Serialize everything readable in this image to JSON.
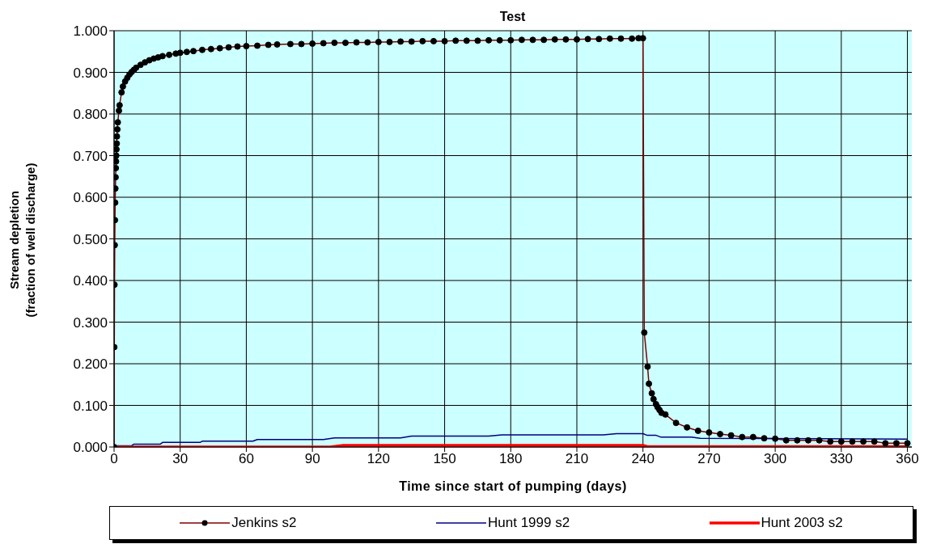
{
  "chart_data": {
    "type": "line",
    "title": "Test",
    "xlabel": "Time since start of pumping (days)",
    "ylabel": "Stream depletion\n(fraction of well discharge)",
    "xlim": [
      0,
      362
    ],
    "xticks": [
      0,
      30,
      60,
      90,
      120,
      150,
      180,
      210,
      240,
      270,
      300,
      330,
      360
    ],
    "ylim": [
      0,
      1
    ],
    "yticks": [
      {
        "value": 0,
        "label": "0.000"
      },
      {
        "value": 0.1,
        "label": "0.100"
      },
      {
        "value": 0.2,
        "label": "0.200"
      },
      {
        "value": 0.3,
        "label": "0.300"
      },
      {
        "value": 0.4,
        "label": "0.400"
      },
      {
        "value": 0.5,
        "label": "0.500"
      },
      {
        "value": 0.6,
        "label": "0.600"
      },
      {
        "value": 0.7,
        "label": "0.700"
      },
      {
        "value": 0.8,
        "label": "0.800"
      },
      {
        "value": 0.9,
        "label": "0.900"
      },
      {
        "value": 1,
        "label": "1.000"
      }
    ],
    "grid": true,
    "legend": "bottom",
    "series": [
      {
        "name": "Jenkins s2",
        "color": "#800000",
        "marker": "circle",
        "x": [
          0,
          0.1,
          0.2,
          0.3,
          0.4,
          0.5,
          0.6,
          0.7,
          0.8,
          0.9,
          1.0,
          1.1,
          1.2,
          1.3,
          1.5,
          1.7,
          2.2,
          2.5,
          3.4,
          4,
          5,
          6,
          7,
          8,
          9,
          10,
          12,
          14,
          16,
          18,
          20,
          22,
          25,
          28,
          30,
          33,
          36,
          40,
          44,
          48,
          52,
          56,
          60,
          65,
          70,
          74,
          80,
          85,
          90,
          95,
          100,
          105,
          110,
          115,
          120,
          125,
          130,
          135,
          140,
          145,
          150,
          155,
          160,
          165,
          170,
          175,
          180,
          185,
          190,
          195,
          200,
          205,
          210,
          215,
          220,
          225,
          230,
          235,
          238,
          240,
          240.6,
          242.1,
          242.7,
          244,
          244.8,
          245.9,
          246.6,
          247.5,
          248.4,
          250.2,
          255,
          260,
          265,
          270,
          275,
          280,
          285,
          290,
          295,
          300,
          305,
          310,
          315,
          320,
          325,
          330,
          335,
          340,
          345,
          350,
          355,
          360
        ],
        "values": [
          0,
          0.24,
          0.39,
          0.485,
          0.545,
          0.587,
          0.621,
          0.648,
          0.67,
          0.686,
          0.7,
          0.715,
          0.729,
          0.746,
          0.763,
          0.78,
          0.808,
          0.821,
          0.852,
          0.866,
          0.878,
          0.887,
          0.895,
          0.901,
          0.906,
          0.911,
          0.918,
          0.924,
          0.929,
          0.933,
          0.936,
          0.939,
          0.942,
          0.945,
          0.947,
          0.949,
          0.951,
          0.954,
          0.956,
          0.958,
          0.96,
          0.962,
          0.963,
          0.964,
          0.966,
          0.967,
          0.968,
          0.968,
          0.969,
          0.97,
          0.971,
          0.971,
          0.972,
          0.972,
          0.973,
          0.973,
          0.974,
          0.974,
          0.975,
          0.975,
          0.975,
          0.976,
          0.976,
          0.976,
          0.977,
          0.977,
          0.977,
          0.978,
          0.978,
          0.978,
          0.979,
          0.979,
          0.979,
          0.98,
          0.98,
          0.981,
          0.981,
          0.981,
          0.982,
          0.982,
          0.275,
          0.193,
          0.152,
          0.129,
          0.115,
          0.103,
          0.096,
          0.089,
          0.082,
          0.078,
          0.058,
          0.047,
          0.039,
          0.035,
          0.031,
          0.028,
          0.024,
          0.024,
          0.021,
          0.02,
          0.016,
          0.016,
          0.016,
          0.016,
          0.013,
          0.013,
          0.013,
          0.013,
          0.013,
          0.009,
          0.009,
          0.009
        ]
      },
      {
        "name": "Hunt 1999 s2",
        "color": "#000080",
        "marker": "none",
        "x": [
          0,
          8,
          9,
          21,
          22,
          39,
          40,
          63,
          65,
          95,
          100,
          130,
          135,
          170,
          176,
          222,
          228,
          240,
          242,
          246,
          248,
          262,
          266,
          360
        ],
        "values": [
          0.003,
          0.003,
          0.007,
          0.007,
          0.011,
          0.011,
          0.014,
          0.014,
          0.018,
          0.018,
          0.022,
          0.022,
          0.026,
          0.026,
          0.029,
          0.029,
          0.032,
          0.032,
          0.028,
          0.028,
          0.024,
          0.024,
          0.021,
          0.019
        ]
      },
      {
        "name": "Hunt 2003 s2",
        "color": "#ff0000",
        "marker": "none",
        "x": [
          0,
          98,
          104,
          240,
          242,
          360
        ],
        "values": [
          0,
          0,
          0.004,
          0.004,
          0.001,
          0.001
        ]
      }
    ]
  }
}
